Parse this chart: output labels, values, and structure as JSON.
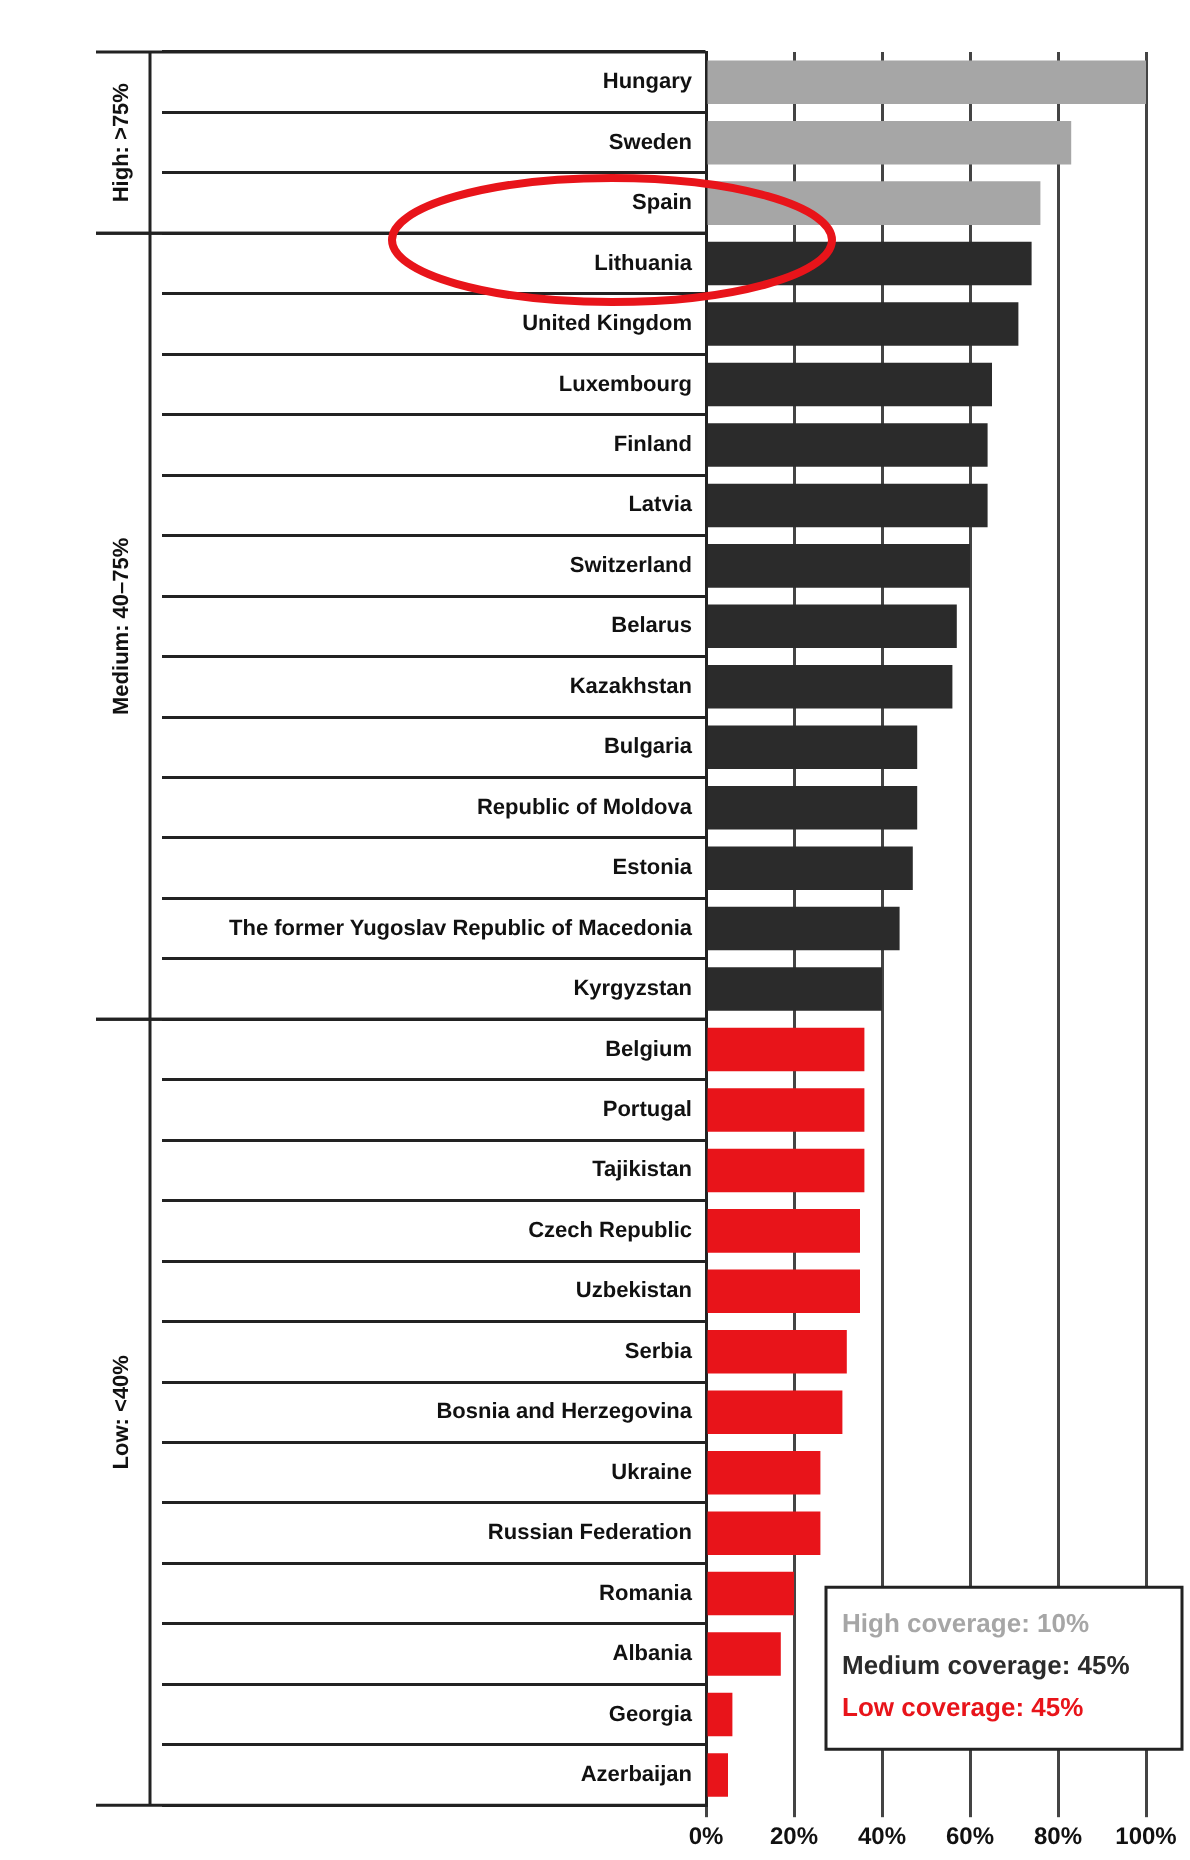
{
  "chart_data": {
    "type": "bar",
    "orientation": "horizontal",
    "stacked": true,
    "categories": [
      "Hungary",
      "Sweden",
      "Spain",
      "Lithuania",
      "United Kingdom",
      "Luxembourg",
      "Finland",
      "Latvia",
      "Switzerland",
      "Belarus",
      "Kazakhstan",
      "Bulgaria",
      "Republic of Moldova",
      "Estonia",
      "The former Yugoslav Republic of Macedonia",
      "Kyrgyzstan",
      "Belgium",
      "Portugal",
      "Tajikistan",
      "Czech Republic",
      "Uzbekistan",
      "Serbia",
      "Bosnia and Herzegovina",
      "Ukraine",
      "Russian Federation",
      "Romania",
      "Albania",
      "Georgia",
      "Azerbaijan"
    ],
    "series": [
      {
        "name": "High coverage: 10%",
        "color": "#a6a6a6",
        "values": [
          100,
          83,
          76,
          null,
          null,
          null,
          null,
          null,
          null,
          null,
          null,
          null,
          null,
          null,
          null,
          null,
          null,
          null,
          null,
          null,
          null,
          null,
          null,
          null,
          null,
          null,
          null,
          null,
          null
        ]
      },
      {
        "name": "Medium coverage: 45%",
        "color": "#2b2b2b",
        "values": [
          null,
          null,
          null,
          74,
          71,
          65,
          64,
          64,
          60,
          57,
          56,
          48,
          48,
          47,
          44,
          40,
          null,
          null,
          null,
          null,
          null,
          null,
          null,
          null,
          null,
          null,
          null,
          null,
          null
        ]
      },
      {
        "name": "Low coverage: 45%",
        "color": "#e8141a",
        "values": [
          null,
          null,
          null,
          null,
          null,
          null,
          null,
          null,
          null,
          null,
          null,
          null,
          null,
          null,
          null,
          null,
          36,
          36,
          36,
          35,
          35,
          32,
          31,
          26,
          26,
          20,
          17,
          6,
          5
        ]
      }
    ],
    "xlim": [
      0,
      100
    ],
    "xticks": [
      {
        "value": 0,
        "label": "0%"
      },
      {
        "value": 20,
        "label": "20%"
      },
      {
        "value": 40,
        "label": "40%"
      },
      {
        "value": 60,
        "label": "60%"
      },
      {
        "value": 80,
        "label": "80%"
      },
      {
        "value": 100,
        "label": "100%"
      }
    ],
    "grid": "x",
    "legend": "bottom right",
    "annotations": [
      "High: >75%",
      "Medium: 40–75%",
      "Low: <40%"
    ]
  }
}
